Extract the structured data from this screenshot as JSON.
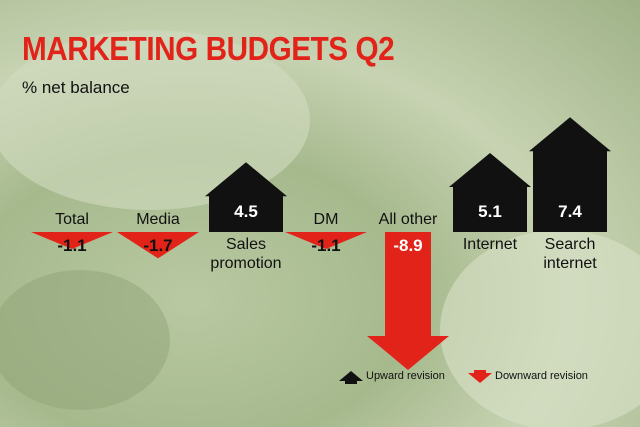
{
  "chart_data": {
    "type": "arrow",
    "title": "MARKETING BUDGETS Q2",
    "subtitle": "% net balance",
    "categories": [
      "Total",
      "Media",
      "Sales promotion",
      "DM",
      "All other",
      "Internet",
      "Search internet"
    ],
    "values": [
      -1.1,
      -1.7,
      4.5,
      -1.1,
      -8.9,
      5.1,
      7.4
    ],
    "legend": [
      {
        "label": "Upward revision",
        "color": "#111111"
      },
      {
        "label": "Downward revision",
        "color": "#e2231a"
      }
    ]
  }
}
